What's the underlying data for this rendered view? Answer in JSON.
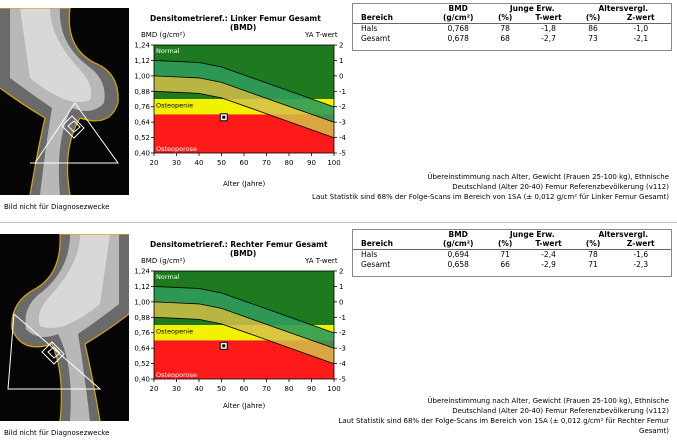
{
  "disclaimer": "Bild nicht für Diagnosezwecke",
  "legend_labels": {
    "normal": "Normal",
    "osteopenie": "Osteopenie",
    "osteoporose": "Osteoporose"
  },
  "y_axis_label": "BMD (g/cm²)",
  "t_axis_label": "YA T-wert",
  "x_axis_label": "Alter (Jahre)",
  "y_ticks": [
    "1,24",
    "1,12",
    "1,00",
    "0,88",
    "0,76",
    "0,64",
    "0,52",
    "0,40"
  ],
  "t_ticks": [
    "2",
    "1",
    "0",
    "-1",
    "-2",
    "-3",
    "-4",
    "-5"
  ],
  "x_ticks": [
    "20",
    "30",
    "40",
    "50",
    "60",
    "70",
    "80",
    "90",
    "100"
  ],
  "table_headers": {
    "bereich": "Bereich",
    "bmd": "BMD",
    "bmd_unit": "(g/cm²)",
    "junge": "Junge Erw.",
    "pct": "(%)",
    "twert": "T-wert",
    "alters": "Altersvergl.",
    "zwert": "Z-wert"
  },
  "colors": {
    "normal": "#1e7a1e",
    "osteopenie": "#f2f200",
    "osteoporose": "#ff1a1a",
    "band_green": "#2e9b5a",
    "band_yellow": "#d4c04a"
  },
  "sections": [
    {
      "title": "Densitometrieref.: Linker Femur Gesamt",
      "title_sub": "(BMD)",
      "rows": [
        {
          "bereich": "Hals",
          "bmd": "0,768",
          "young_pct": "78",
          "t": "-1,8",
          "age_pct": "86",
          "z": "-1,0"
        },
        {
          "bereich": "Gesamt",
          "bmd": "0,678",
          "young_pct": "68",
          "t": "-2,7",
          "age_pct": "73",
          "z": "-2,1"
        }
      ],
      "note1": "Übereinstimmung nach Alter, Gewicht (Frauen 25-100 kg), Ethnische",
      "note2": "Deutschland (Alter 20-40) Femur Referenzbevölkerung (v112)",
      "note3": "Laut Statistik sind 68% der Folge-Scans im Bereich von 1SA (± 0,012 g/cm² für Linker Femur Gesamt)",
      "note4": "",
      "chart_data": {
        "type": "scatter",
        "x": [
          51
        ],
        "y": [
          0.678
        ],
        "xlim": [
          20,
          100
        ],
        "ylim": [
          0.4,
          1.24
        ]
      }
    },
    {
      "title": "Densitometrieref.: Rechter Femur Gesamt",
      "title_sub": "(BMD)",
      "rows": [
        {
          "bereich": "Hals",
          "bmd": "0,694",
          "young_pct": "71",
          "t": "-2,4",
          "age_pct": "78",
          "z": "-1,6"
        },
        {
          "bereich": "Gesamt",
          "bmd": "0,658",
          "young_pct": "66",
          "t": "-2,9",
          "age_pct": "71",
          "z": "-2,3"
        }
      ],
      "note1": "Übereinstimmung nach Alter, Gewicht (Frauen 25-100 kg), Ethnische",
      "note2": "Deutschland (Alter 20-40) Femur Referenzbevölkerung (v112)",
      "note3": "Laut Statistik sind 68% der Folge-Scans im Bereich von 1SA (± 0,012 g/cm² für Rechter Femur",
      "note4": "Gesamt)",
      "chart_data": {
        "type": "scatter",
        "x": [
          51
        ],
        "y": [
          0.658
        ],
        "xlim": [
          20,
          100
        ],
        "ylim": [
          0.4,
          1.24
        ]
      }
    }
  ]
}
